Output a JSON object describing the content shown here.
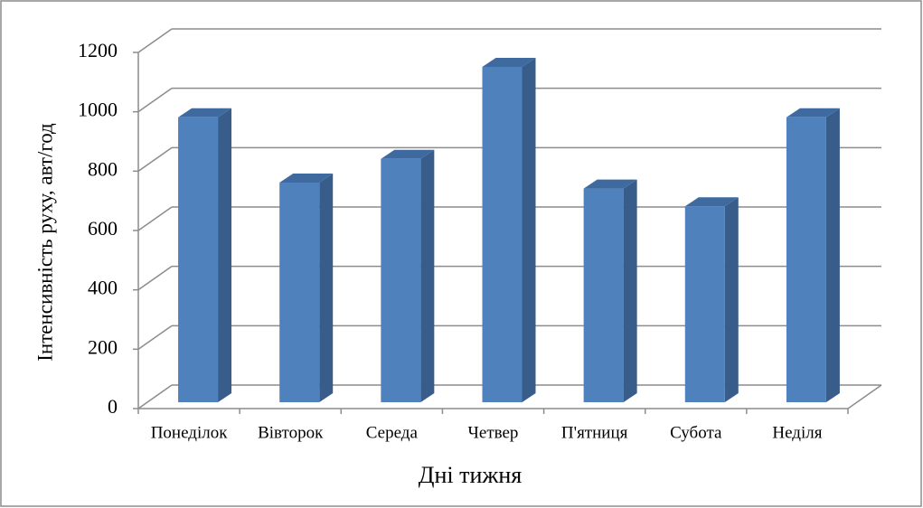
{
  "chart_data": {
    "type": "bar3d",
    "x_label": "Дні тижня",
    "y_label": "Інтенсивність руху, авт/год",
    "categories": [
      "Понеділок",
      "Вівторок",
      "Середа",
      "Четвер",
      "П'ятниця",
      "Субота",
      "Неділя"
    ],
    "values": [
      960,
      740,
      820,
      1130,
      720,
      660,
      960
    ],
    "color": "#4f81bd",
    "ylim": [
      0,
      1200
    ],
    "yticks": [
      0,
      200,
      400,
      600,
      800,
      1000,
      1200
    ],
    "grid": true
  }
}
